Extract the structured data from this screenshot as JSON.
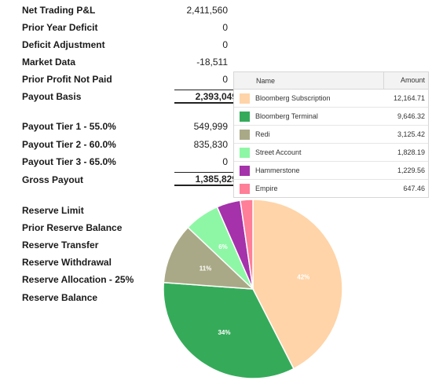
{
  "summary": [
    {
      "label": "Net Trading P&L",
      "value": "2,411,560"
    },
    {
      "label": "Prior Year Deficit",
      "value": "0"
    },
    {
      "label": "Deficit Adjustment",
      "value": "0"
    },
    {
      "label": "Market Data",
      "value": "-18,511"
    },
    {
      "label": "Prior Profit Not Paid",
      "value": "0"
    },
    {
      "label": "Payout Basis",
      "value": "2,393,049"
    }
  ],
  "tiers": [
    {
      "label": "Payout Tier 1 - 55.0%",
      "value": "549,999"
    },
    {
      "label": "Payout Tier 2 - 60.0%",
      "value": "835,830"
    },
    {
      "label": "Payout Tier 3 - 65.0%",
      "value": "0"
    },
    {
      "label": "Gross Payout",
      "value": "1,385,829"
    }
  ],
  "reserves": [
    {
      "label": "Reserve Limit"
    },
    {
      "label": "Prior Reserve Balance"
    },
    {
      "label": "Reserve Transfer"
    },
    {
      "label": "Reserve Withdrawal"
    },
    {
      "label": "Reserve Allocation - 25%"
    },
    {
      "label": "Reserve Balance"
    }
  ],
  "legend": {
    "col_name": "Name",
    "col_amount": "Amount"
  },
  "chart_data": {
    "type": "pie",
    "title": "",
    "slices": [
      {
        "name": "Bloomberg Subscription",
        "amount": "12,164.71",
        "value": 12164.71,
        "label": "42%",
        "color": "#ffd4a8"
      },
      {
        "name": "Bloomberg Terminal",
        "amount": "9,646.32",
        "value": 9646.32,
        "label": "34%",
        "color": "#35ab5a"
      },
      {
        "name": "Redi",
        "amount": "3,125.42",
        "value": 3125.42,
        "label": "11%",
        "color": "#aaa987"
      },
      {
        "name": "Street Account",
        "amount": "1,828.19",
        "value": 1828.19,
        "label": "6%",
        "color": "#8ef7a5"
      },
      {
        "name": "Hammerstone",
        "amount": "1,229.56",
        "value": 1229.56,
        "label": "",
        "color": "#a531ab"
      },
      {
        "name": "Empire",
        "amount": "647.46",
        "value": 647.46,
        "label": "",
        "color": "#ff7e98"
      }
    ]
  }
}
